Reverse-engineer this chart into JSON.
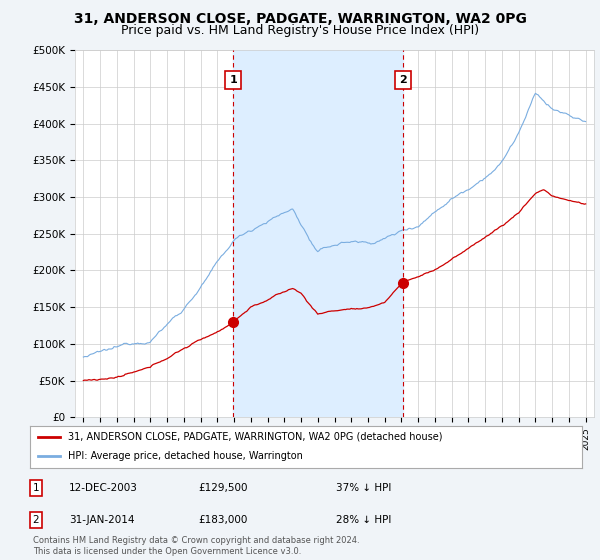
{
  "title": "31, ANDERSON CLOSE, PADGATE, WARRINGTON, WA2 0PG",
  "subtitle": "Price paid vs. HM Land Registry's House Price Index (HPI)",
  "ylabel_ticks": [
    "£0",
    "£50K",
    "£100K",
    "£150K",
    "£200K",
    "£250K",
    "£300K",
    "£350K",
    "£400K",
    "£450K",
    "£500K"
  ],
  "ytick_values": [
    0,
    50000,
    100000,
    150000,
    200000,
    250000,
    300000,
    350000,
    400000,
    450000,
    500000
  ],
  "xlim_start": 1994.5,
  "xlim_end": 2025.5,
  "ylim": [
    0,
    500000
  ],
  "sale1_date": 2003.95,
  "sale1_price": 129500,
  "sale1_label": "1",
  "sale2_date": 2014.08,
  "sale2_price": 183000,
  "sale2_label": "2",
  "legend_line1": "31, ANDERSON CLOSE, PADGATE, WARRINGTON, WA2 0PG (detached house)",
  "legend_line2": "HPI: Average price, detached house, Warrington",
  "table_row1": [
    "1",
    "12-DEC-2003",
    "£129,500",
    "37% ↓ HPI"
  ],
  "table_row2": [
    "2",
    "31-JAN-2014",
    "£183,000",
    "28% ↓ HPI"
  ],
  "footnote": "Contains HM Land Registry data © Crown copyright and database right 2024.\nThis data is licensed under the Open Government Licence v3.0.",
  "line_color_red": "#cc0000",
  "line_color_blue": "#7aade0",
  "shade_color": "#ddeeff",
  "vline_color": "#cc0000",
  "background_color": "#f0f4f8",
  "plot_bg_color": "#ffffff",
  "grid_color": "#cccccc",
  "title_fontsize": 10,
  "subtitle_fontsize": 9
}
